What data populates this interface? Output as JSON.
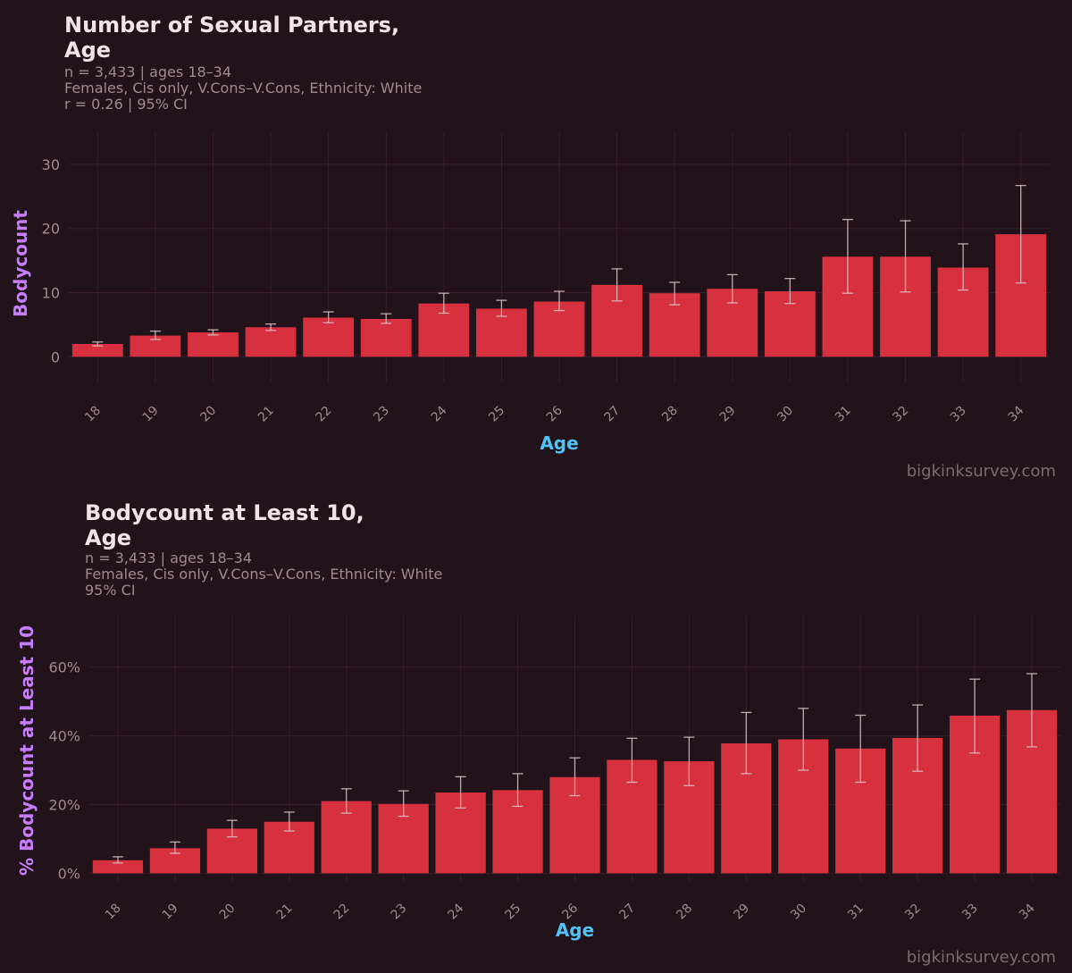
{
  "watermark": "bigkinksurvey.com",
  "charts": [
    {
      "title_line1": "Number of Sexual Partners,",
      "title_line2": "Age",
      "subtitle_line1": "n = 3,433  |  ages 18–34",
      "subtitle_line2": "Females, Cis only, V.Cons–V.Cons, Ethnicity: White",
      "subtitle_line3": "r = 0.26  |  95% CI"
    },
    {
      "title_line1": "Bodycount at Least 10,",
      "title_line2": "Age",
      "subtitle_line1": "n = 3,433  |  ages 18–34",
      "subtitle_line2": "Females, Cis only, V.Cons–V.Cons, Ethnicity: White",
      "subtitle_line3": "95% CI"
    }
  ],
  "colors": {
    "bar": "#d7313f",
    "axis_label_y": "#c77dff",
    "axis_label_x": "#4fc3f7",
    "error_bar": "#d9c4c8"
  },
  "chart_data": [
    {
      "type": "bar",
      "title": "Number of Sexual Partners, Age",
      "xlabel": "Age",
      "ylabel": "Bodycount",
      "ylim": [
        -4,
        35
      ],
      "yticks": [
        0,
        10,
        20,
        30
      ],
      "ytick_labels": [
        "0",
        "10",
        "20",
        "30"
      ],
      "categories": [
        "18",
        "19",
        "20",
        "21",
        "22",
        "23",
        "24",
        "25",
        "26",
        "27",
        "28",
        "29",
        "30",
        "31",
        "32",
        "33",
        "34"
      ],
      "values": [
        2.0,
        3.3,
        3.8,
        4.6,
        6.1,
        5.9,
        8.3,
        7.5,
        8.6,
        11.2,
        9.9,
        10.6,
        10.2,
        15.6,
        15.6,
        13.9,
        19.1
      ],
      "ci_low": [
        1.7,
        2.7,
        3.4,
        4.1,
        5.3,
        5.2,
        6.8,
        6.3,
        7.2,
        8.7,
        8.1,
        8.4,
        8.3,
        9.9,
        10.1,
        10.4,
        11.5
      ],
      "ci_high": [
        2.3,
        4.0,
        4.2,
        5.1,
        7.0,
        6.7,
        9.9,
        8.8,
        10.2,
        13.7,
        11.6,
        12.8,
        12.2,
        21.4,
        21.2,
        17.6,
        26.7
      ]
    },
    {
      "type": "bar",
      "title": "Bodycount at Least 10, Age",
      "xlabel": "Age",
      "ylabel": "% Bodycount at Least 10",
      "ylim": [
        -2.5,
        75
      ],
      "yticks": [
        0,
        20,
        40,
        60
      ],
      "ytick_labels": [
        "0%",
        "20%",
        "40%",
        "60%"
      ],
      "categories": [
        "18",
        "19",
        "20",
        "21",
        "22",
        "23",
        "24",
        "25",
        "26",
        "27",
        "28",
        "29",
        "30",
        "31",
        "32",
        "33",
        "34"
      ],
      "values": [
        3.8,
        7.3,
        13.0,
        15.0,
        21.0,
        20.2,
        23.5,
        24.2,
        28.0,
        33.0,
        32.6,
        37.8,
        39.0,
        36.3,
        39.4,
        45.9,
        47.5
      ],
      "ci_low": [
        3.0,
        5.8,
        10.6,
        12.3,
        17.5,
        16.6,
        19.0,
        19.5,
        22.6,
        26.5,
        25.5,
        29.0,
        30.0,
        26.5,
        29.7,
        35.0,
        36.8
      ],
      "ci_high": [
        4.8,
        9.1,
        15.4,
        17.8,
        24.6,
        24.0,
        28.1,
        29.0,
        33.6,
        39.3,
        39.6,
        46.8,
        48.0,
        46.0,
        49.0,
        56.5,
        58.1
      ]
    }
  ]
}
